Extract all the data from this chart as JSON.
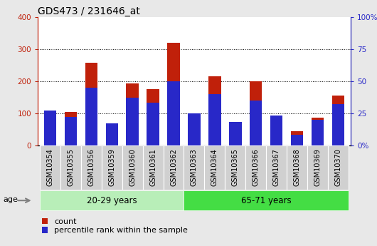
{
  "title": "GDS473 / 231646_at",
  "samples": [
    "GSM10354",
    "GSM10355",
    "GSM10356",
    "GSM10359",
    "GSM10360",
    "GSM10361",
    "GSM10362",
    "GSM10363",
    "GSM10364",
    "GSM10365",
    "GSM10366",
    "GSM10367",
    "GSM10368",
    "GSM10369",
    "GSM10370"
  ],
  "counts": [
    105,
    103,
    258,
    65,
    193,
    175,
    320,
    95,
    215,
    68,
    200,
    93,
    43,
    85,
    155
  ],
  "percentiles": [
    27,
    22,
    45,
    17,
    37,
    33,
    50,
    25,
    40,
    18,
    35,
    23,
    8,
    20,
    32
  ],
  "bar_color_red": "#C0200A",
  "bar_color_blue": "#2828C8",
  "group1_label": "20-29 years",
  "group2_label": "65-71 years",
  "group1_count": 7,
  "group2_count": 8,
  "age_label": "age",
  "left_ylim": [
    0,
    400
  ],
  "right_ylim": [
    0,
    100
  ],
  "left_yticks": [
    0,
    100,
    200,
    300,
    400
  ],
  "right_yticks": [
    0,
    25,
    50,
    75,
    100
  ],
  "right_yticklabels": [
    "0%",
    "25",
    "50",
    "75",
    "100%"
  ],
  "bg_color": "#e8e8e8",
  "plot_bg": "#ffffff",
  "xticklabel_bg": "#d0d0d0",
  "group1_bg": "#b8eeb8",
  "group2_bg": "#44dd44",
  "legend_count_label": "count",
  "legend_pct_label": "percentile rank within the sample",
  "title_fontsize": 10,
  "tick_fontsize": 7,
  "bar_width": 0.6
}
